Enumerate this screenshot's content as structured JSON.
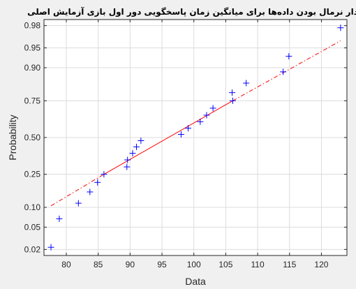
{
  "chart_data": {
    "type": "scatter",
    "title": "نمودار نرمال بودن داده‌ها برای میانگین زمان پاسخگویی دور اول بازی آزمایش اصلی",
    "xlabel": "Data",
    "ylabel": "Probability",
    "xlim": [
      76.5,
      124
    ],
    "x_ticks": [
      80,
      85,
      90,
      95,
      100,
      105,
      110,
      115,
      120
    ],
    "y_scale": "normal-probability",
    "y_ticks": [
      0.02,
      0.05,
      0.1,
      0.25,
      0.5,
      0.75,
      0.9,
      0.95,
      0.98
    ],
    "grid": true,
    "marker": "+",
    "colors": {
      "markers": "#0000ff",
      "fit_line": "#ff0000",
      "background": "#f0f0f0",
      "plot_area": "#ffffff",
      "grid": "#dcdcdc"
    },
    "points": [
      {
        "x": 77.6,
        "y": 0.022
      },
      {
        "x": 78.9,
        "y": 0.068
      },
      {
        "x": 81.9,
        "y": 0.114
      },
      {
        "x": 83.7,
        "y": 0.159
      },
      {
        "x": 84.9,
        "y": 0.205
      },
      {
        "x": 85.9,
        "y": 0.25
      },
      {
        "x": 89.5,
        "y": 0.295
      },
      {
        "x": 89.6,
        "y": 0.341
      },
      {
        "x": 90.4,
        "y": 0.386
      },
      {
        "x": 91.0,
        "y": 0.432
      },
      {
        "x": 91.7,
        "y": 0.477
      },
      {
        "x": 98.0,
        "y": 0.523
      },
      {
        "x": 99.1,
        "y": 0.568
      },
      {
        "x": 101.0,
        "y": 0.614
      },
      {
        "x": 102.0,
        "y": 0.659
      },
      {
        "x": 103.0,
        "y": 0.705
      },
      {
        "x": 106.1,
        "y": 0.75
      },
      {
        "x": 106.0,
        "y": 0.795
      },
      {
        "x": 108.2,
        "y": 0.841
      },
      {
        "x": 114.0,
        "y": 0.886
      },
      {
        "x": 114.9,
        "y": 0.932
      },
      {
        "x": 123.0,
        "y": 0.978
      }
    ],
    "fit_line": {
      "solid": [
        {
          "x": 85.9,
          "y": 0.25
        },
        {
          "x": 106.1,
          "y": 0.75
        }
      ],
      "dashed_left": [
        {
          "x": 77.6,
          "y": 0.105
        },
        {
          "x": 85.9,
          "y": 0.25
        }
      ],
      "dashed_right": [
        {
          "x": 106.1,
          "y": 0.75
        },
        {
          "x": 123.0,
          "y": 0.962
        }
      ]
    }
  }
}
